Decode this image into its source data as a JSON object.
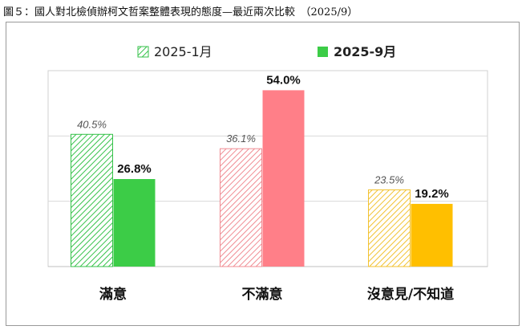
{
  "figure_title": "圖５：國人對北檢偵辦柯文哲案整體表現的態度—最近兩次比較　（2025/9）",
  "colors": {
    "satisfied": "#3ccc47",
    "dissatisfied": "#ff7f88",
    "no_opinion": "#ffbf00",
    "hatch_satisfied": "#36c24a",
    "hatch_dissatisfied": "#f08c93",
    "hatch_no_opinion": "#f2c230"
  },
  "chart_data": {
    "type": "bar",
    "categories": [
      "滿意",
      "不滿意",
      "沒意見/不知道"
    ],
    "series": [
      {
        "name": "2025-1月",
        "values": [
          40.5,
          36.1,
          23.5
        ],
        "labels": [
          "40.5%",
          "36.1%",
          "23.5%"
        ],
        "fill": "hatched"
      },
      {
        "name": "2025-9月",
        "values": [
          26.8,
          54.0,
          19.2
        ],
        "labels": [
          "26.8%",
          "54.0%",
          "19.2%"
        ],
        "fill": "solid"
      }
    ],
    "bar_colors_by_category": [
      "#3ccc47",
      "#ff7f88",
      "#ffbf00"
    ],
    "ylim": [
      0,
      60
    ],
    "grid": true,
    "legend_position": "top-center"
  }
}
